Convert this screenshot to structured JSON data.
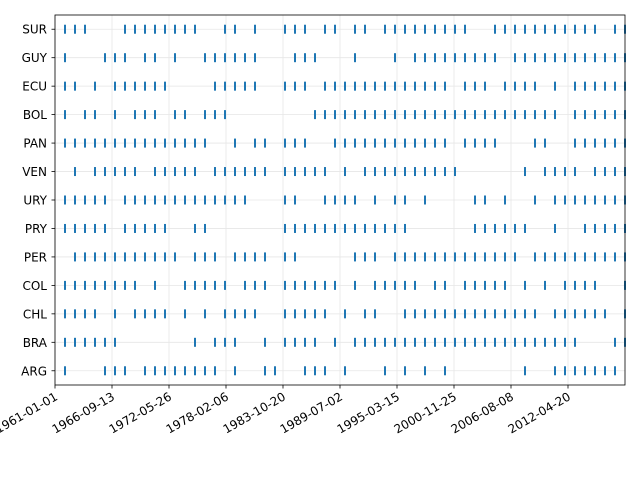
{
  "chart_data": {
    "type": "event-raster",
    "title": "",
    "xlabel": "",
    "ylabel": "",
    "x_tick_labels": [
      "1961-01-01",
      "1966-09-13",
      "1972-05-26",
      "1978-02-06",
      "1983-10-20",
      "1989-07-02",
      "1995-03-15",
      "2000-11-25",
      "2006-08-08",
      "2012-04-20"
    ],
    "x_domain_years": [
      1961,
      2018
    ],
    "grid": true,
    "marker_color": "#1f77b4",
    "categories": [
      "ARG",
      "BRA",
      "CHL",
      "COL",
      "PER",
      "PRY",
      "URY",
      "VEN",
      "PAN",
      "BOL",
      "ECU",
      "GUY",
      "SUR"
    ],
    "series": [
      {
        "name": "ARG",
        "events": [
          1962,
          1966,
          1967,
          1968,
          1970,
          1971,
          1972,
          1973,
          1974,
          1975,
          1976,
          1977,
          1979,
          1982,
          1982,
          1983,
          1986,
          1987,
          1988,
          1990,
          1994,
          1996,
          1998,
          2000,
          2008,
          2011,
          2012,
          2013,
          2014,
          2015,
          2016,
          2017
        ]
      },
      {
        "name": "BRA",
        "events": [
          1962,
          1963,
          1964,
          1965,
          1966,
          1967,
          1975,
          1977,
          1978,
          1979,
          1982,
          1984,
          1985,
          1986,
          1987,
          1989,
          1991,
          1992,
          1993,
          1994,
          1995,
          1996,
          1997,
          1998,
          1999,
          2000,
          2001,
          2002,
          2003,
          2004,
          2005,
          2006,
          2007,
          2008,
          2009,
          2010,
          2011,
          2012,
          2013,
          2017,
          2018
        ]
      },
      {
        "name": "CHL",
        "events": [
          1962,
          1963,
          1964,
          1965,
          1967,
          1969,
          1970,
          1971,
          1972,
          1974,
          1976,
          1978,
          1979,
          1980,
          1981,
          1984,
          1985,
          1986,
          1987,
          1988,
          1990,
          1992,
          1993,
          1996,
          1997,
          1998,
          1999,
          2000,
          2001,
          2002,
          2003,
          2004,
          2005,
          2006,
          2007,
          2008,
          2009,
          2011,
          2012,
          2013,
          2014,
          2015,
          2016,
          2018
        ]
      },
      {
        "name": "COL",
        "events": [
          1962,
          1963,
          1964,
          1965,
          1966,
          1967,
          1968,
          1969,
          1971,
          1974,
          1975,
          1976,
          1977,
          1978,
          1980,
          1981,
          1982,
          1984,
          1985,
          1986,
          1987,
          1988,
          1989,
          1991,
          1993,
          1994,
          1995,
          1996,
          1997,
          1999,
          2000,
          2002,
          2003,
          2004,
          2005,
          2006,
          2008,
          2010,
          2012,
          2013,
          2014,
          2015,
          2018
        ]
      },
      {
        "name": "PER",
        "events": [
          1963,
          1964,
          1965,
          1966,
          1967,
          1968,
          1969,
          1970,
          1971,
          1972,
          1973,
          1975,
          1976,
          1977,
          1979,
          1980,
          1981,
          1982,
          1984,
          1985,
          1991,
          1992,
          1993,
          1995,
          1996,
          1997,
          1998,
          1999,
          2000,
          2001,
          2002,
          2003,
          2004,
          2005,
          2006,
          2007,
          2009,
          2010,
          2011,
          2012,
          2013,
          2014,
          2015,
          2016,
          2017,
          2018
        ]
      },
      {
        "name": "PRY",
        "events": [
          1962,
          1963,
          1964,
          1965,
          1966,
          1968,
          1969,
          1970,
          1971,
          1972,
          1975,
          1976,
          1984,
          1985,
          1986,
          1987,
          1988,
          1989,
          1990,
          1991,
          1992,
          1993,
          1994,
          1995,
          1996,
          2003,
          2004,
          2005,
          2006,
          2007,
          2008,
          2011,
          2014,
          2015,
          2016,
          2017,
          2018
        ]
      },
      {
        "name": "URY",
        "events": [
          1962,
          1963,
          1964,
          1965,
          1966,
          1968,
          1969,
          1970,
          1971,
          1972,
          1973,
          1974,
          1975,
          1976,
          1977,
          1978,
          1979,
          1980,
          1984,
          1985,
          1988,
          1989,
          1990,
          1991,
          1993,
          1995,
          1996,
          1998,
          2003,
          2004,
          2006,
          2009,
          2011,
          2012,
          2013,
          2014,
          2015,
          2016,
          2017,
          2018
        ]
      },
      {
        "name": "VEN",
        "events": [
          1963,
          1965,
          1966,
          1967,
          1968,
          1969,
          1971,
          1972,
          1973,
          1974,
          1975,
          1977,
          1978,
          1979,
          1980,
          1981,
          1982,
          1984,
          1985,
          1986,
          1987,
          1988,
          1990,
          1992,
          1993,
          1994,
          1995,
          1996,
          1997,
          1998,
          1999,
          2000,
          2001,
          2008,
          2010,
          2011,
          2012,
          2013,
          2015,
          2016,
          2017,
          2018
        ]
      },
      {
        "name": "PAN",
        "events": [
          1962,
          1963,
          1964,
          1965,
          1966,
          1967,
          1968,
          1969,
          1970,
          1971,
          1972,
          1973,
          1974,
          1975,
          1976,
          1979,
          1981,
          1982,
          1984,
          1985,
          1986,
          1989,
          1990,
          1991,
          1992,
          1993,
          1994,
          1995,
          1996,
          1997,
          1998,
          1999,
          2000,
          2002,
          2003,
          2004,
          2005,
          2009,
          2010,
          2013,
          2014,
          2015,
          2016,
          2017,
          2018
        ]
      },
      {
        "name": "BOL",
        "events": [
          1962,
          1964,
          1965,
          1967,
          1969,
          1970,
          1971,
          1973,
          1974,
          1976,
          1977,
          1978,
          1987,
          1988,
          1989,
          1990,
          1991,
          1992,
          1993,
          1994,
          1995,
          1996,
          1997,
          1998,
          1999,
          2000,
          2001,
          2002,
          2003,
          2004,
          2005,
          2006,
          2007,
          2008,
          2009,
          2010,
          2011,
          2013,
          2014,
          2015,
          2016,
          2017,
          2018
        ]
      },
      {
        "name": "ECU",
        "events": [
          1962,
          1963,
          1965,
          1967,
          1968,
          1969,
          1970,
          1971,
          1972,
          1977,
          1978,
          1979,
          1980,
          1981,
          1984,
          1985,
          1986,
          1988,
          1989,
          1990,
          1991,
          1992,
          1993,
          1994,
          1995,
          1996,
          1997,
          1998,
          1999,
          2000,
          2002,
          2003,
          2004,
          2006,
          2007,
          2008,
          2009,
          2011,
          2013,
          2014,
          2015,
          2016,
          2017,
          2018
        ]
      },
      {
        "name": "GUY",
        "events": [
          1962,
          1966,
          1967,
          1968,
          1970,
          1971,
          1973,
          1976,
          1977,
          1978,
          1979,
          1980,
          1981,
          1985,
          1986,
          1987,
          1991,
          1995,
          1997,
          1998,
          1999,
          2000,
          2001,
          2002,
          2003,
          2004,
          2005,
          2007,
          2008,
          2009,
          2010,
          2011,
          2012,
          2013,
          2014,
          2015,
          2016,
          2017,
          2018
        ]
      },
      {
        "name": "SUR",
        "events": [
          1962,
          1963,
          1964,
          1968,
          1969,
          1970,
          1971,
          1972,
          1973,
          1974,
          1975,
          1978,
          1979,
          1981,
          1984,
          1985,
          1986,
          1988,
          1989,
          1991,
          1992,
          1994,
          1995,
          1996,
          1997,
          1998,
          1999,
          2000,
          2001,
          2002,
          2005,
          2006,
          2007,
          2008,
          2009,
          2010,
          2011,
          2012,
          2013,
          2014,
          2015,
          2017,
          2018
        ]
      }
    ]
  }
}
